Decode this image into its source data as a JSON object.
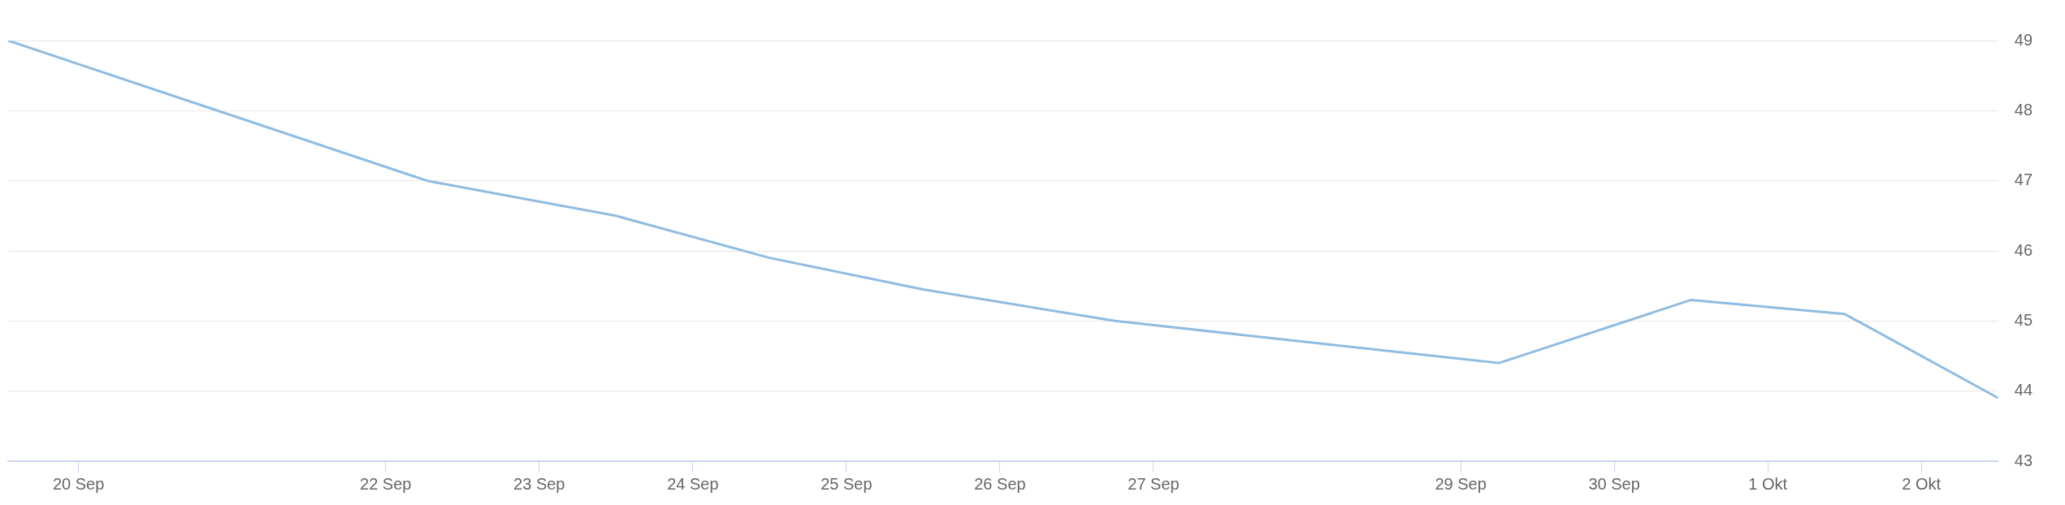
{
  "chart_data": {
    "type": "line",
    "x": [
      "--09-19T13:00",
      "--09-22T06:30",
      "--09-23T12:00",
      "--09-24T12:00",
      "--09-25T12:00",
      "--09-26T18:00",
      "--09-29T06:00",
      "--09-30T12:00",
      "--10-01T12:00",
      "--10-02T12:00"
    ],
    "series": [
      {
        "color": "#8fbce0",
        "values": [
          49.0,
          47.0,
          46.5,
          45.9,
          45.45,
          45.0,
          44.4,
          45.3,
          45.1,
          43.9
        ]
      }
    ],
    "xlim": [
      "--09-19T13:00",
      "--10-02T12:00"
    ],
    "xticks": [
      {
        "value": "--09-20",
        "label": "20 Sep"
      },
      {
        "value": "--09-22",
        "label": "22 Sep"
      },
      {
        "value": "--09-23",
        "label": "23 Sep"
      },
      {
        "value": "--09-24",
        "label": "24 Sep"
      },
      {
        "value": "--09-25",
        "label": "25 Sep"
      },
      {
        "value": "--09-26",
        "label": "26 Sep"
      },
      {
        "value": "--09-27",
        "label": "27 Sep"
      },
      {
        "value": "--09-29",
        "label": "29 Sep"
      },
      {
        "value": "--09-30",
        "label": "30 Sep"
      },
      {
        "value": "--10-01",
        "label": "1 Okt"
      },
      {
        "value": "--10-02",
        "label": "2 Okt"
      }
    ],
    "ylim": [
      43,
      49
    ],
    "yticks": [
      43,
      44,
      45,
      46,
      47,
      48,
      49
    ],
    "grid": "y",
    "marker": "none",
    "line_style": "solid"
  }
}
